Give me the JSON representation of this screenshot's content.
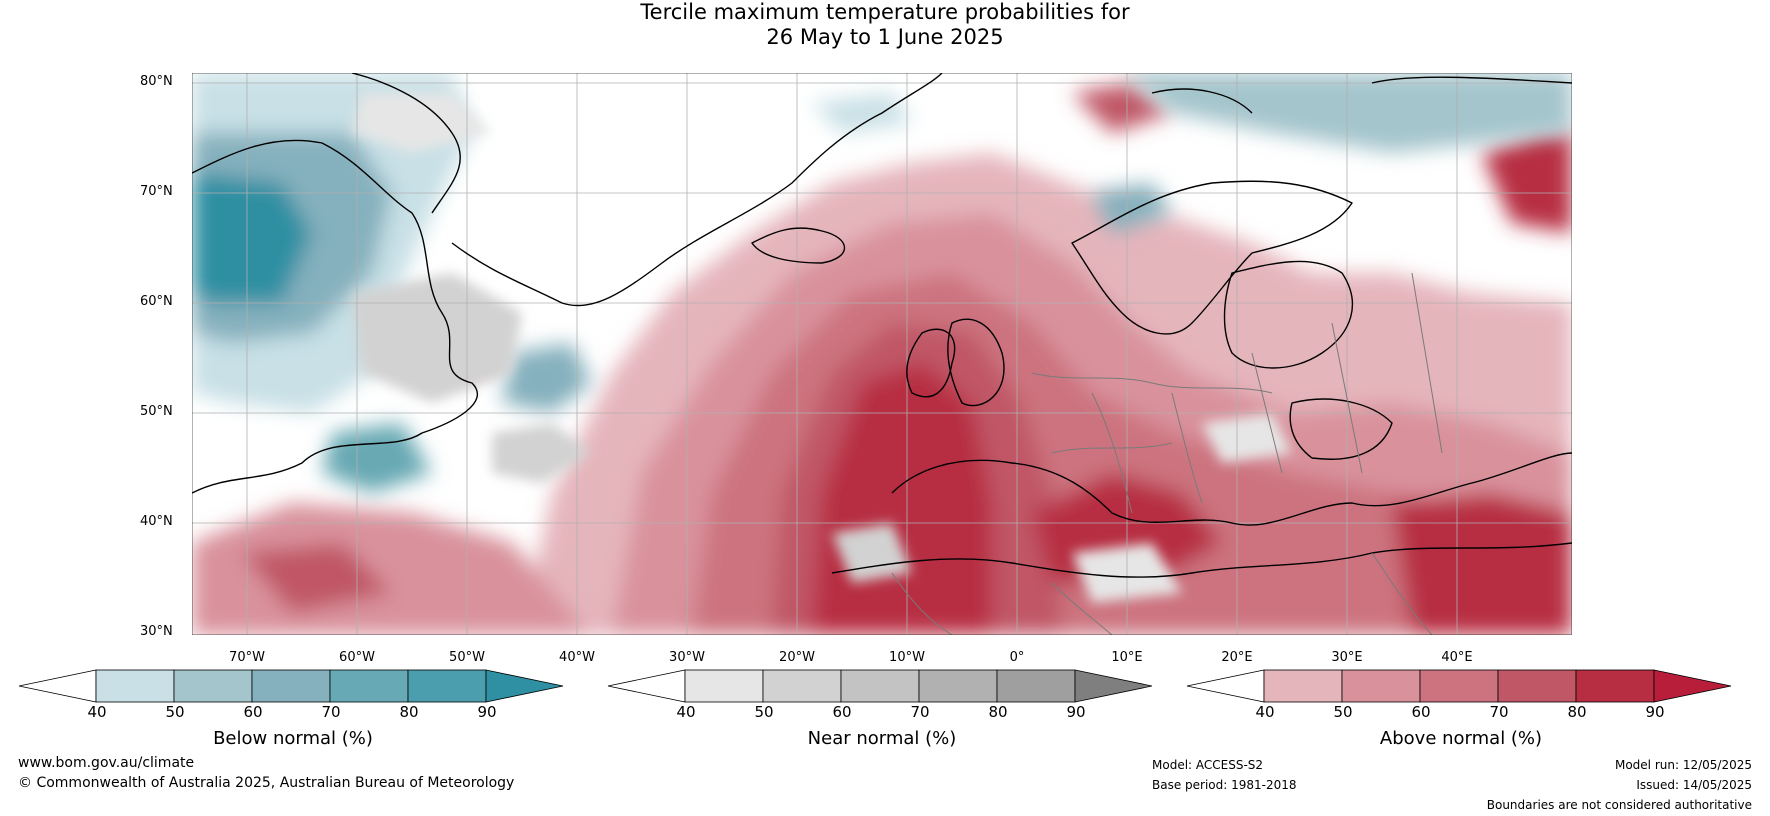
{
  "title": {
    "line1": "Tercile maximum temperature probabilities for",
    "line2": "26 May to 1 June 2025"
  },
  "axes": {
    "lat_labels": [
      "80°N",
      "70°N",
      "60°N",
      "50°N",
      "40°N",
      "30°N"
    ],
    "lon_labels": [
      "70°W",
      "60°W",
      "50°W",
      "40°W",
      "30°W",
      "20°W",
      "10°W",
      "0°",
      "10°E",
      "20°E",
      "30°E",
      "40°E"
    ]
  },
  "colorbars": [
    {
      "id": "below",
      "title": "Below normal (%)",
      "ticks": [
        "40",
        "50",
        "60",
        "70",
        "80",
        "90"
      ],
      "colors": [
        "#ffffff",
        "#c8e0e6",
        "#a4c5cc",
        "#85b0bd",
        "#67a9b4",
        "#4a9eae",
        "#2f8fa3"
      ]
    },
    {
      "id": "near",
      "title": "Near normal (%)",
      "ticks": [
        "40",
        "50",
        "60",
        "70",
        "80",
        "90"
      ],
      "colors": [
        "#ffffff",
        "#e6e6e6",
        "#d2d2d2",
        "#c3c3c3",
        "#b1b1b1",
        "#9f9f9f",
        "#7f7f7f"
      ]
    },
    {
      "id": "above",
      "title": "Above normal (%)",
      "ticks": [
        "40",
        "50",
        "60",
        "70",
        "80",
        "90"
      ],
      "colors": [
        "#ffffff",
        "#e5b5bc",
        "#d9929c",
        "#cc737f",
        "#c05766",
        "#b72d42",
        "#b81d3a"
      ]
    }
  ],
  "footer": {
    "website": "www.bom.gov.au/climate",
    "copyright": "© Commonwealth of Australia 2025, Australian Bureau of Meteorology",
    "model": "Model: ACCESS-S2",
    "base_period": "Base period: 1981-2018",
    "model_run": "Model run: 12/05/2025",
    "issued": "Issued: 14/05/2025",
    "disclaimer": "Boundaries are not considered authoritative"
  },
  "map": {
    "ocean_color": "#ffffff",
    "grid_color": "#b0b0b0",
    "coast_color": "#000000",
    "border_color": "#7a7a7a"
  }
}
